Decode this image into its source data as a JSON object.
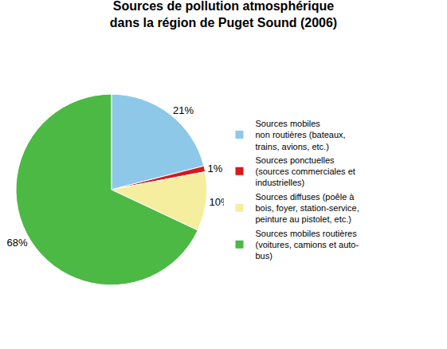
{
  "chart_data": {
    "type": "pie",
    "title": "Sources de pollution atmosphérique\ndans la région de Puget Sound (2006)",
    "categories": [
      "Sources mobiles\nnon routières (bateaux,\ntrains, avions, etc.)",
      "Sources ponctuelles\n(sources commerciales et\nindustrielles)",
      "Sources diffuses (poêle à\nbois, foyer, station-service,\npeinture au pistolet, etc.)",
      "Sources mobiles routières\n(voitures, camions et auto-\nbus)"
    ],
    "values": [
      21,
      1,
      10,
      68
    ],
    "value_labels": [
      "21%",
      "1%",
      "10%",
      "68%"
    ],
    "colors": [
      "#8EC8E8",
      "#D7191C",
      "#F5EE9E",
      "#4CB944"
    ],
    "data_labels": true,
    "legend": "right"
  }
}
